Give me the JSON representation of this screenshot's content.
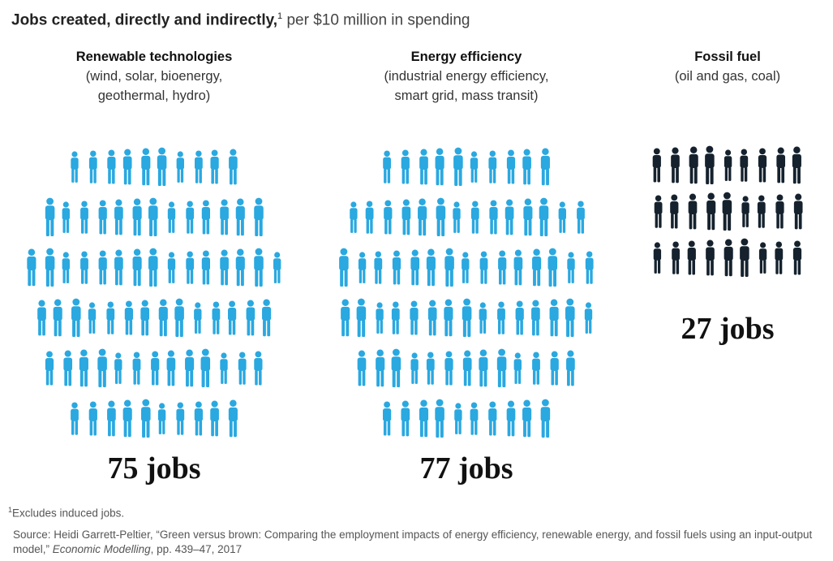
{
  "chart_data": {
    "type": "pictogram",
    "title": "Jobs created, directly and indirectly,",
    "title_note": "1",
    "subtitle": "per $10 million in spending",
    "categories": [
      "Renewable technologies",
      "Energy efficiency",
      "Fossil fuel"
    ],
    "descriptions": [
      [
        "(wind, solar, bioenergy,",
        "geothermal, hydro)"
      ],
      [
        "(industrial energy efficiency,",
        "smart grid, mass transit)"
      ],
      [
        "(oil and gas, coal)"
      ]
    ],
    "values": [
      75,
      77,
      27
    ],
    "value_labels": [
      "75 jobs",
      "77 jobs",
      "27 jobs"
    ],
    "colors": [
      "#2aa8e0",
      "#2aa8e0",
      "#15222e"
    ],
    "footnote_mark": "1",
    "footnote": "Excludes induced jobs.",
    "source": "Source: Heidi Garrett-Peltier, “Green versus brown: Comparing the employment impacts of energy efficiency, renewable energy, and fossil fuels using an input-output model,”",
    "source_journal": "Economic Modelling",
    "source_pages": ",  pp. 439–47, 2017"
  }
}
